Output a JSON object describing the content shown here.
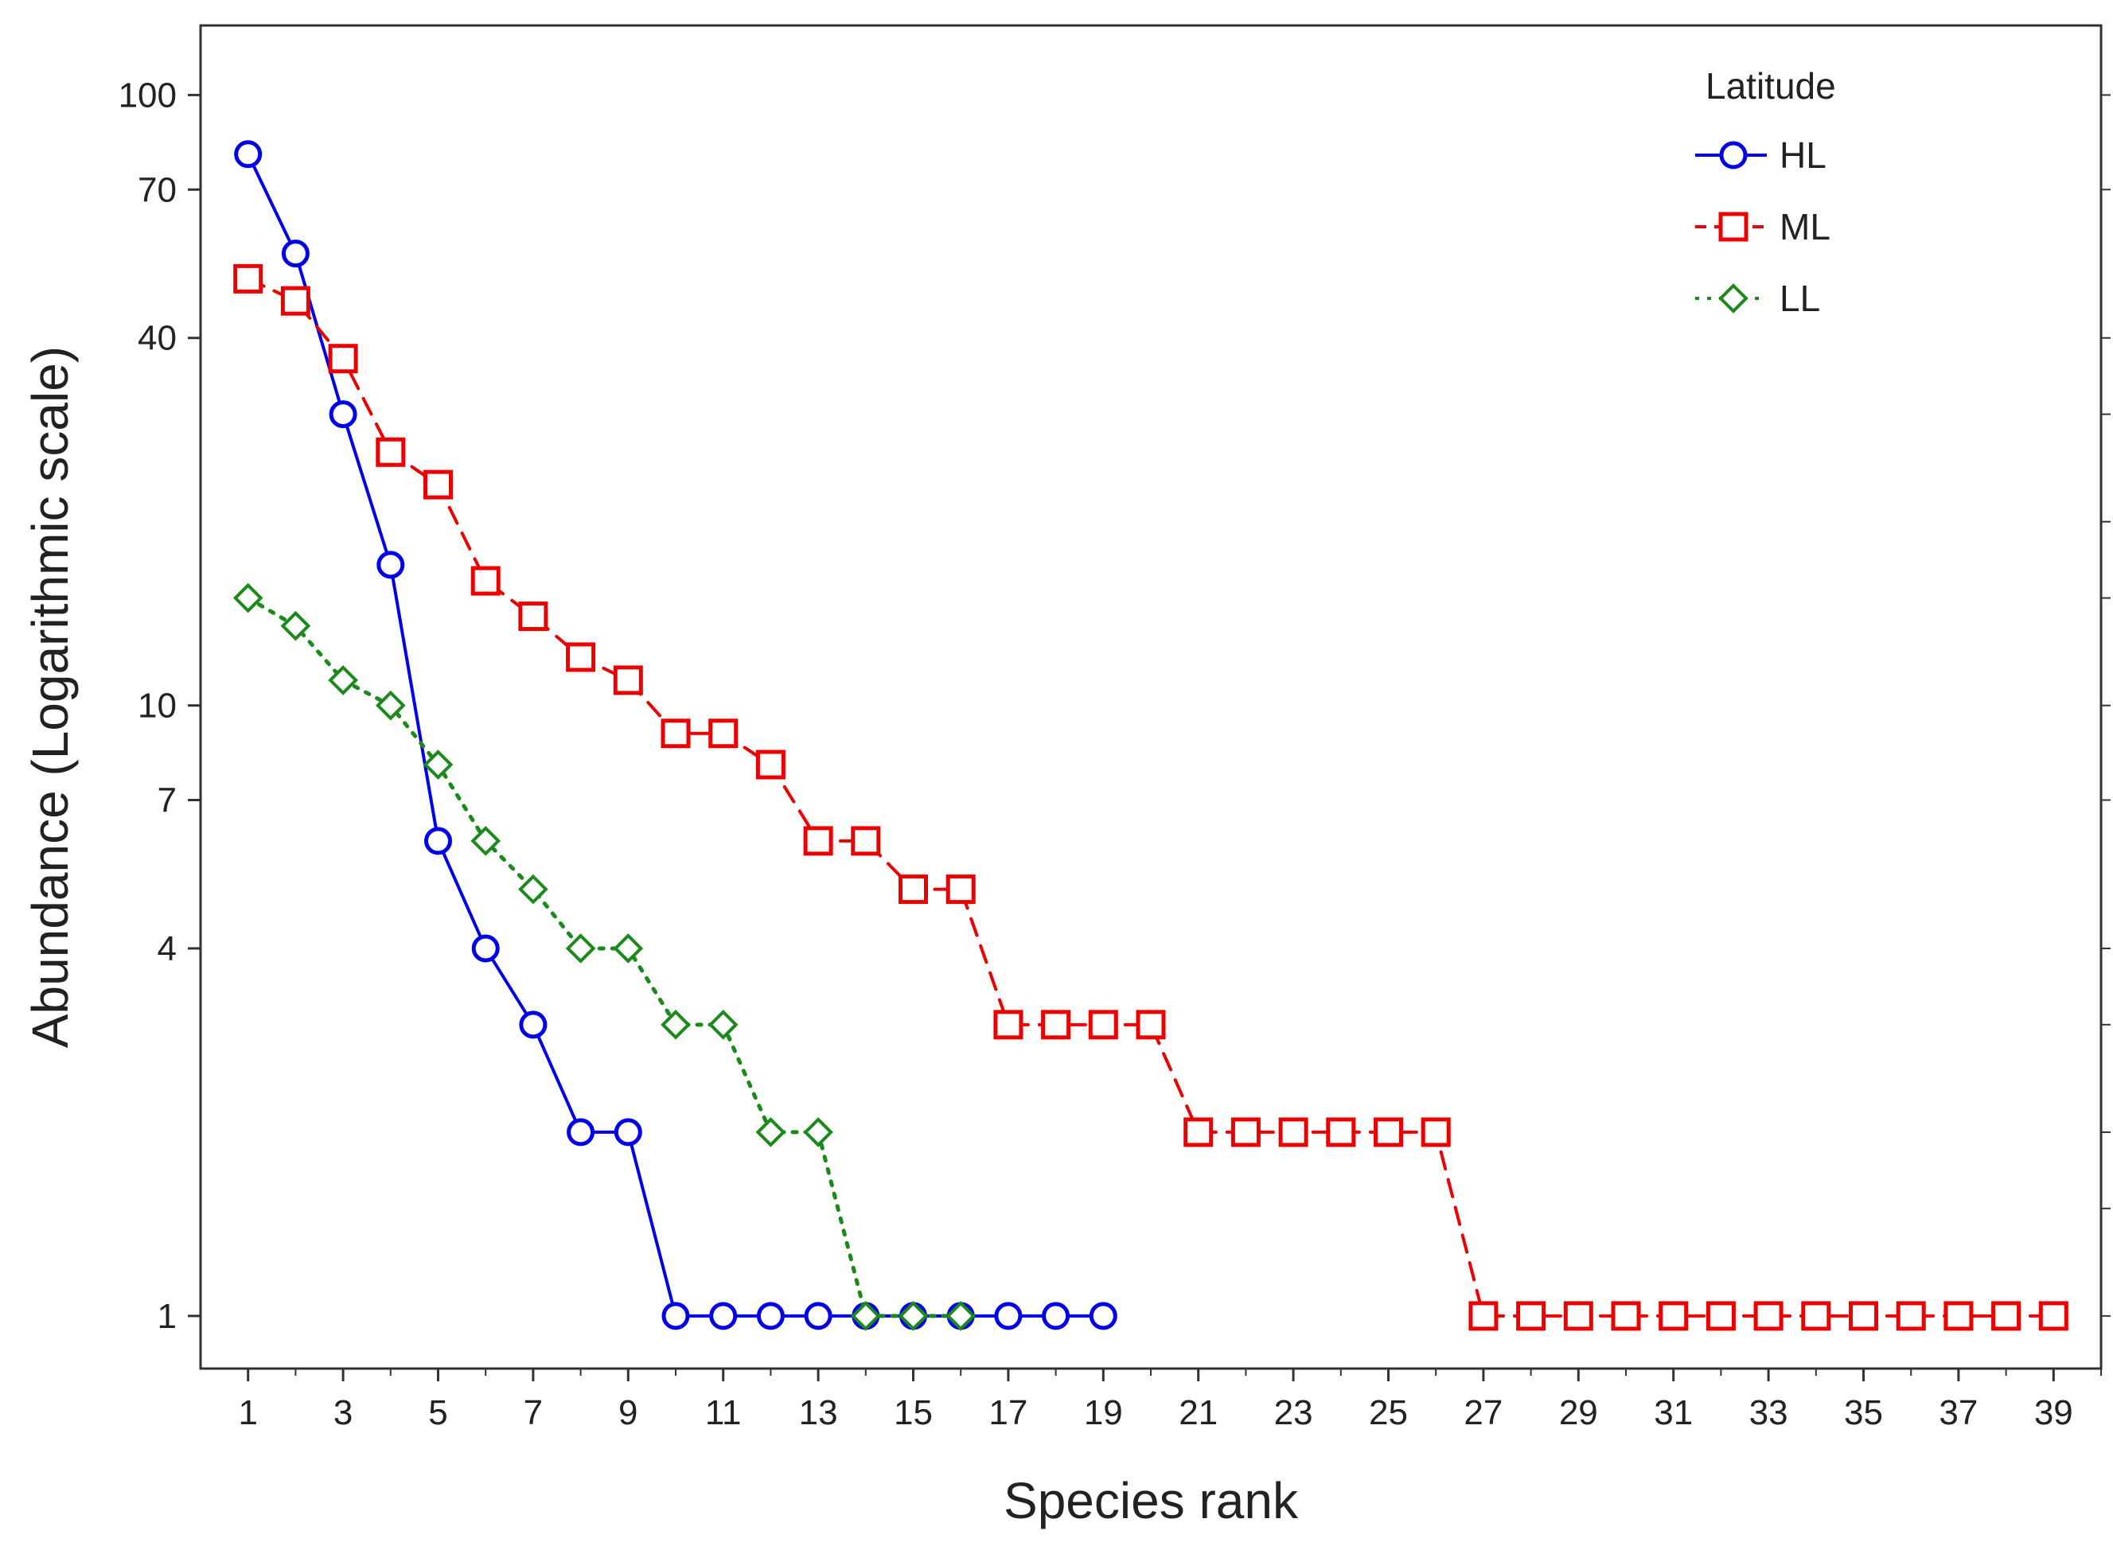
{
  "chart_data": {
    "type": "line",
    "title": "",
    "xlabel": "Species rank",
    "ylabel": "Abundance (Logarithmic scale)",
    "yscale": "log",
    "xlim": [
      0,
      40
    ],
    "ylim": [
      0.82,
      130
    ],
    "x_ticks": [
      1,
      3,
      5,
      7,
      9,
      11,
      13,
      15,
      17,
      19,
      21,
      23,
      25,
      27,
      29,
      31,
      33,
      35,
      37,
      39
    ],
    "y_ticks": [
      1,
      4,
      7,
      10,
      40,
      70,
      100
    ],
    "grid": false,
    "legend": {
      "title": "Latitude",
      "position": "top-right"
    },
    "series": [
      {
        "name": "HL",
        "color": "#0000ee",
        "line_style": "solid",
        "marker": "circle",
        "x": [
          1,
          2,
          3,
          4,
          5,
          6,
          7,
          8,
          9,
          10,
          11,
          12,
          13,
          14,
          15,
          16,
          17,
          18,
          19
        ],
        "values": [
          80,
          55,
          30,
          17,
          6,
          4,
          3,
          2,
          2,
          1,
          1,
          1,
          1,
          1,
          1,
          1,
          1,
          1,
          1
        ]
      },
      {
        "name": "ML",
        "color": "#ee0000",
        "line_style": "dashed",
        "marker": "square",
        "x": [
          1,
          2,
          3,
          4,
          5,
          6,
          7,
          8,
          9,
          10,
          11,
          12,
          13,
          14,
          15,
          16,
          17,
          18,
          19,
          20,
          21,
          22,
          23,
          24,
          25,
          26,
          27,
          28,
          29,
          30,
          31,
          32,
          33,
          34,
          35,
          36,
          37,
          38,
          39
        ],
        "values": [
          50,
          46,
          37,
          26,
          23,
          16,
          14,
          12,
          11,
          9,
          9,
          8,
          6,
          6,
          5,
          5,
          3,
          3,
          3,
          3,
          2,
          2,
          2,
          2,
          2,
          2,
          1,
          1,
          1,
          1,
          1,
          1,
          1,
          1,
          1,
          1,
          1,
          1,
          1
        ]
      },
      {
        "name": "LL",
        "color": "#1a8a1a",
        "line_style": "dotted",
        "marker": "diamond",
        "x": [
          1,
          2,
          3,
          4,
          5,
          6,
          7,
          8,
          9,
          10,
          11,
          12,
          13,
          14,
          15,
          16
        ],
        "values": [
          15,
          13.5,
          11,
          10,
          8,
          6,
          5,
          4,
          4,
          3,
          3,
          2,
          2,
          1,
          1,
          1
        ]
      }
    ]
  }
}
